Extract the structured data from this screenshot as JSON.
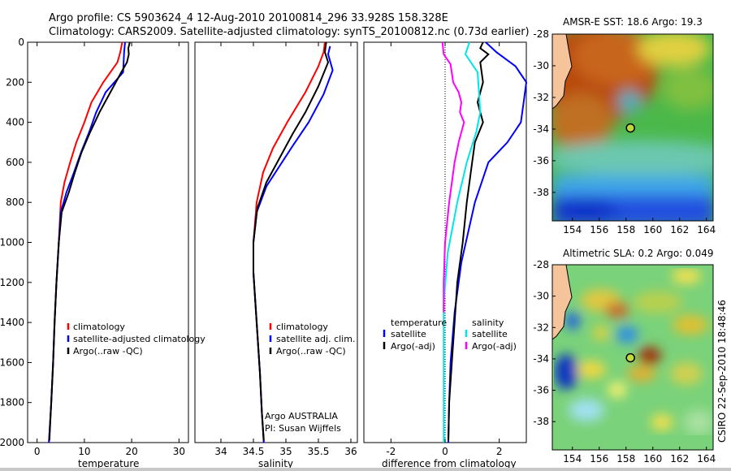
{
  "header": {
    "line1": "Argo profile: CS 5903624_4 12-Aug-2010 20100814_296 33.928S 158.328E",
    "line2": "Climatology: CARS2009. Satellite-adjusted climatology: synTS_20100812.nc (0.73d earlier)"
  },
  "side_text": "CSIRO 22-Sep-2010 18:48:46",
  "colors": {
    "red": "#ff0000",
    "blue": "#0000ff",
    "black": "#000000",
    "cyan": "#00e6e6",
    "magenta": "#ff00ff",
    "land": "#f5c49a"
  },
  "chart_data": [
    {
      "id": "temperature",
      "type": "line",
      "xlabel": "temperature",
      "ylabel": "",
      "xlim": [
        -2,
        32
      ],
      "ylim": [
        2000,
        0
      ],
      "xticks": [
        0,
        10,
        20,
        30
      ],
      "yticks": [
        0,
        200,
        400,
        600,
        800,
        1000,
        1200,
        1400,
        1600,
        1800,
        2000
      ],
      "legend": [
        "climatology",
        "satellite-adjusted climatology",
        "Argo(..raw -QC)"
      ],
      "series": [
        {
          "name": "climatology",
          "color": "#ff0000",
          "points": [
            [
              18,
              0
            ],
            [
              17.6,
              50
            ],
            [
              17,
              100
            ],
            [
              14,
              200
            ],
            [
              11.5,
              300
            ],
            [
              10,
              400
            ],
            [
              8.3,
              500
            ],
            [
              7,
              600
            ],
            [
              5.8,
              700
            ],
            [
              5,
              800
            ],
            [
              4.6,
              1000
            ],
            [
              4.1,
              1200
            ],
            [
              3.7,
              1400
            ],
            [
              3.4,
              1600
            ],
            [
              3,
              1800
            ],
            [
              2.5,
              2000
            ]
          ]
        },
        {
          "name": "satellite-adjusted climatology",
          "color": "#0000ff",
          "points": [
            [
              18.6,
              0
            ],
            [
              18.4,
              50
            ],
            [
              18.3,
              100
            ],
            [
              18.2,
              150
            ],
            [
              14.5,
              250
            ],
            [
              12.5,
              350
            ],
            [
              11,
              450
            ],
            [
              9.3,
              550
            ],
            [
              7.8,
              650
            ],
            [
              6.2,
              750
            ],
            [
              5,
              850
            ],
            [
              4.6,
              1000
            ],
            [
              4.1,
              1200
            ],
            [
              3.7,
              1400
            ],
            [
              3.4,
              1600
            ],
            [
              3,
              1800
            ],
            [
              2.5,
              2000
            ]
          ]
        },
        {
          "name": "Argo(..raw -QC)",
          "color": "#000000",
          "points": [
            [
              19.6,
              0
            ],
            [
              19.3,
              30
            ],
            [
              19.4,
              60
            ],
            [
              19,
              100
            ],
            [
              17.8,
              150
            ],
            [
              15.5,
              250
            ],
            [
              13.2,
              350
            ],
            [
              11.2,
              450
            ],
            [
              9.4,
              550
            ],
            [
              8,
              650
            ],
            [
              6.7,
              750
            ],
            [
              5.2,
              850
            ],
            [
              4.6,
              1000
            ],
            [
              4.1,
              1200
            ],
            [
              3.7,
              1400
            ],
            [
              3.4,
              1600
            ],
            [
              3,
              1800
            ],
            [
              2.6,
              1990
            ]
          ]
        }
      ]
    },
    {
      "id": "salinity",
      "type": "line",
      "xlabel": "salinity",
      "ylabel": "",
      "xlim": [
        33.6,
        36.1
      ],
      "ylim": [
        2000,
        0
      ],
      "xticks": [
        34,
        34.5,
        35,
        35.5,
        36
      ],
      "legend": [
        "climatology",
        "satellite adj. clim.",
        "Argo(..raw -QC)"
      ],
      "annotation": [
        "Argo AUSTRALIA",
        "PI: Susan Wijffels"
      ],
      "series": [
        {
          "name": "climatology",
          "color": "#ff0000",
          "points": [
            [
              35.6,
              0
            ],
            [
              35.58,
              50
            ],
            [
              35.5,
              120
            ],
            [
              35.3,
              250
            ],
            [
              35.02,
              400
            ],
            [
              34.8,
              530
            ],
            [
              34.65,
              650
            ],
            [
              34.55,
              800
            ],
            [
              34.5,
              1000
            ],
            [
              34.5,
              1150
            ],
            [
              34.53,
              1300
            ],
            [
              34.56,
              1450
            ],
            [
              34.6,
              1650
            ],
            [
              34.63,
              1850
            ],
            [
              34.66,
              2000
            ]
          ]
        },
        {
          "name": "satellite adj. clim.",
          "color": "#0000ff",
          "points": [
            [
              35.68,
              20
            ],
            [
              35.65,
              60
            ],
            [
              35.72,
              140
            ],
            [
              35.58,
              260
            ],
            [
              35.35,
              400
            ],
            [
              35.1,
              520
            ],
            [
              34.9,
              620
            ],
            [
              34.7,
              720
            ],
            [
              34.55,
              850
            ],
            [
              34.5,
              1000
            ],
            [
              34.5,
              1150
            ],
            [
              34.53,
              1300
            ],
            [
              34.56,
              1450
            ],
            [
              34.6,
              1650
            ],
            [
              34.63,
              1850
            ],
            [
              34.66,
              2000
            ]
          ]
        },
        {
          "name": "Argo(..raw -QC)",
          "color": "#000000",
          "points": [
            [
              35.62,
              0
            ],
            [
              35.6,
              50
            ],
            [
              35.65,
              100
            ],
            [
              35.5,
              220
            ],
            [
              35.3,
              350
            ],
            [
              35.1,
              460
            ],
            [
              34.9,
              580
            ],
            [
              34.7,
              700
            ],
            [
              34.56,
              830
            ],
            [
              34.5,
              1000
            ],
            [
              34.5,
              1150
            ],
            [
              34.53,
              1300
            ],
            [
              34.56,
              1450
            ],
            [
              34.6,
              1650
            ],
            [
              34.63,
              1850
            ],
            [
              34.66,
              1990
            ]
          ]
        }
      ]
    },
    {
      "id": "difference",
      "type": "line",
      "xlabel": "difference from climatology",
      "ylabel": "",
      "xlim": [
        -3,
        3
      ],
      "ylim": [
        2000,
        0
      ],
      "xticks": [
        -2,
        0,
        2
      ],
      "legend_left_title": "temperature",
      "legend_left": [
        "satellite",
        "Argo(-adj)"
      ],
      "legend_right_title": "salinity",
      "legend_right": [
        "satellite",
        "Argo(-adj)"
      ],
      "series": [
        {
          "name": "temperature satellite",
          "color": "#0000ff",
          "points": [
            [
              1.5,
              0
            ],
            [
              1.9,
              50
            ],
            [
              2.6,
              120
            ],
            [
              3.0,
              200
            ],
            [
              2.9,
              300
            ],
            [
              2.8,
              400
            ],
            [
              2.3,
              500
            ],
            [
              1.6,
              600
            ],
            [
              1.1,
              800
            ],
            [
              0.6,
              1100
            ],
            [
              0.35,
              1350
            ],
            [
              0.2,
              1600
            ],
            [
              0.15,
              1800
            ],
            [
              0.12,
              2000
            ]
          ]
        },
        {
          "name": "temperature Argo(-adj)",
          "color": "#000000",
          "points": [
            [
              1.4,
              0
            ],
            [
              1.3,
              30
            ],
            [
              1.6,
              60
            ],
            [
              1.3,
              100
            ],
            [
              1.4,
              200
            ],
            [
              1.2,
              300
            ],
            [
              1.4,
              400
            ],
            [
              1.1,
              500
            ],
            [
              1.0,
              600
            ],
            [
              0.8,
              800
            ],
            [
              0.65,
              1000
            ],
            [
              0.45,
              1200
            ],
            [
              0.35,
              1400
            ],
            [
              0.25,
              1600
            ],
            [
              0.15,
              1800
            ],
            [
              0.12,
              1990
            ]
          ]
        },
        {
          "name": "salinity satellite",
          "color": "#00e6e6",
          "points": [
            [
              0.9,
              0
            ],
            [
              0.75,
              60
            ],
            [
              1.2,
              150
            ],
            [
              1.25,
              250
            ],
            [
              1.3,
              350
            ],
            [
              1.15,
              450
            ],
            [
              0.8,
              600
            ],
            [
              0.45,
              800
            ],
            [
              0.1,
              1050
            ],
            [
              -0.05,
              1300
            ],
            [
              -0.05,
              1600
            ],
            [
              -0.05,
              1800
            ],
            [
              -0.05,
              2000
            ]
          ]
        },
        {
          "name": "salinity Argo(-adj)",
          "color": "#ff00ff",
          "points": [
            [
              -0.1,
              0
            ],
            [
              -0.05,
              60
            ],
            [
              0.2,
              110
            ],
            [
              0.3,
              200
            ],
            [
              0.5,
              250
            ],
            [
              0.6,
              300
            ],
            [
              0.55,
              350
            ],
            [
              0.7,
              400
            ],
            [
              0.5,
              500
            ],
            [
              0.35,
              600
            ],
            [
              0.15,
              800
            ],
            [
              0,
              1000
            ],
            [
              -0.05,
              1200
            ],
            [
              -0.05,
              1350
            ]
          ]
        }
      ]
    },
    {
      "id": "sst_map",
      "type": "heatmap",
      "title": "AMSR-E SST: 18.6 Argo: 19.3",
      "xlim": [
        152.5,
        164.5
      ],
      "ylim": [
        -39.8,
        -28
      ],
      "xticks": [
        154,
        156,
        158,
        160,
        162,
        164
      ],
      "yticks": [
        -28,
        -30,
        -32,
        -34,
        -36,
        -38
      ],
      "marker": {
        "lon": 158.33,
        "lat": -33.93
      }
    },
    {
      "id": "sla_map",
      "type": "heatmap",
      "title": "Altimetric SLA: 0.2 Argo: 0.049",
      "xlim": [
        152.5,
        164.5
      ],
      "ylim": [
        -39.8,
        -28
      ],
      "xticks": [
        154,
        156,
        158,
        160,
        162,
        164
      ],
      "yticks": [
        -28,
        -30,
        -32,
        -34,
        -36,
        -38
      ],
      "marker": {
        "lon": 158.33,
        "lat": -33.93
      }
    }
  ]
}
